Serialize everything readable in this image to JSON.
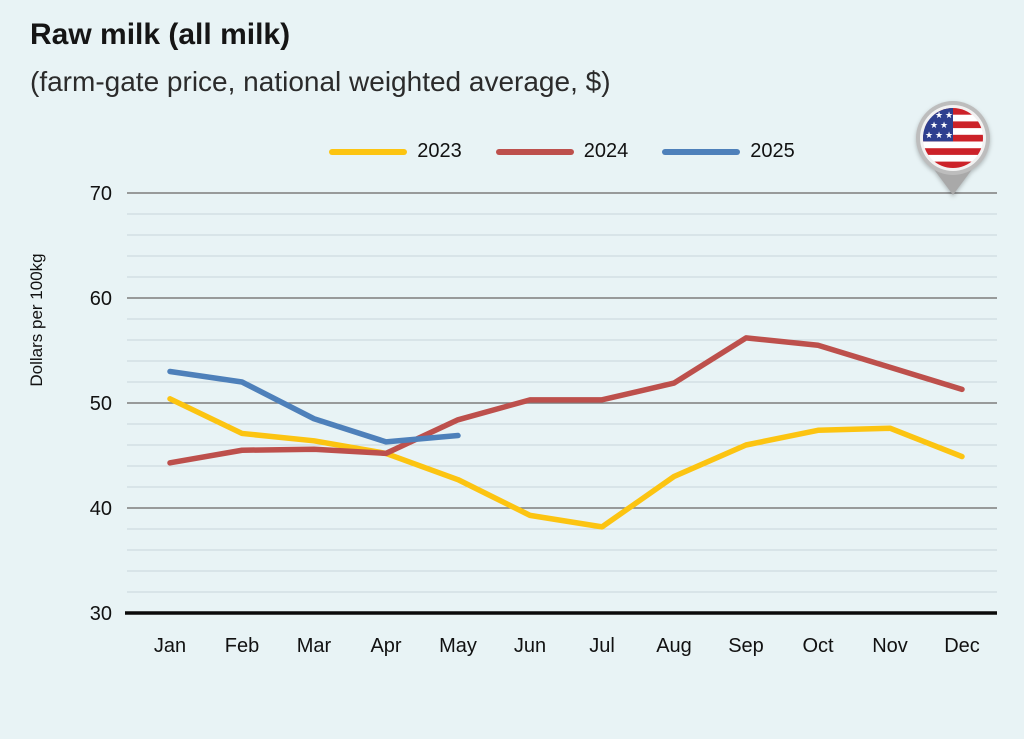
{
  "header": {
    "title": "Raw milk (all milk)",
    "subtitle": "(farm-gate price, national weighted average, $)"
  },
  "icons": {
    "flag_pin": "us-flag-map-pin"
  },
  "colors": {
    "background": "#e8f3f5",
    "major_grid": "#7d7d7d",
    "minor_grid": "#c8d6da",
    "axis": "#0a0a0a",
    "text": "#111111"
  },
  "chart_data": {
    "type": "line",
    "title": "Raw milk (all milk)",
    "subtitle": "(farm-gate price, national weighted average, $)",
    "xlabel": "",
    "ylabel": "Dollars per 100kg",
    "ylim": [
      30,
      70
    ],
    "yticks": [
      30,
      40,
      50,
      60,
      70
    ],
    "minor_grid_step": 2,
    "grid": true,
    "legend_position": "top-center",
    "categories": [
      "Jan",
      "Feb",
      "Mar",
      "Apr",
      "May",
      "Jun",
      "Jul",
      "Aug",
      "Sep",
      "Oct",
      "Nov",
      "Dec"
    ],
    "series": [
      {
        "name": "2023",
        "color": "#fcc411",
        "values": [
          50.4,
          47.1,
          46.4,
          45.2,
          42.7,
          39.3,
          38.2,
          43.0,
          46.0,
          47.4,
          47.6,
          44.9
        ]
      },
      {
        "name": "2024",
        "color": "#bd504c",
        "values": [
          44.3,
          45.5,
          45.6,
          45.2,
          48.4,
          50.3,
          50.3,
          51.9,
          56.2,
          55.5,
          53.4,
          51.3
        ]
      },
      {
        "name": "2025",
        "color": "#4e80ba",
        "values": [
          53.0,
          52.0,
          48.5,
          46.3,
          46.9
        ]
      }
    ]
  }
}
